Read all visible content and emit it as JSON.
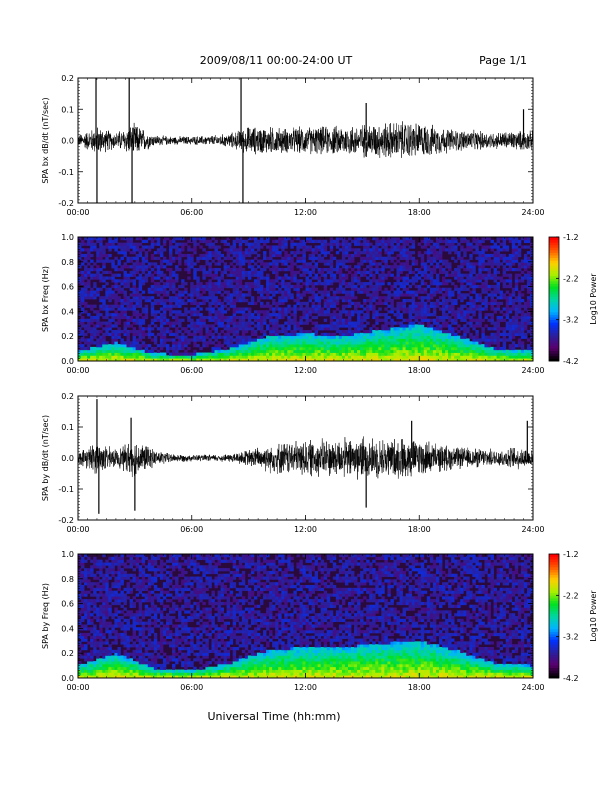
{
  "header": {
    "date_range": "2009/08/11  00:00-24:00 UT",
    "page": "Page 1/1"
  },
  "xaxis": {
    "title": "Universal Time (hh:mm)",
    "tick_labels": [
      "00:00",
      "06:00",
      "12:00",
      "18:00",
      "24:00"
    ],
    "range_hours": [
      0,
      24
    ]
  },
  "colors": {
    "waveform": "#000000",
    "spectrogram_background": "#2a0a3a",
    "colormap": [
      "#000000",
      "#5a006e",
      "#2a1f9c",
      "#0033ff",
      "#00b4ff",
      "#00d6a0",
      "#00e020",
      "#a8f000",
      "#ffd000",
      "#ff5a00",
      "#ff0000"
    ]
  },
  "chart_data": [
    {
      "type": "line",
      "ylabel": "SPA bx dB/dt (nT/sec)",
      "ylim": [
        -0.2,
        0.2
      ],
      "yticks": [
        "-0.2",
        "-0.1",
        "0.0",
        "0.1",
        "0.2"
      ],
      "xlim": [
        0,
        24
      ],
      "envelope": {
        "x_hours": [
          0,
          1,
          2,
          3,
          4,
          5,
          6,
          7,
          8,
          9,
          10,
          11,
          12,
          13,
          14,
          15,
          16,
          17,
          18,
          19,
          20,
          21,
          22,
          23,
          24
        ],
        "amplitude": [
          0.02,
          0.05,
          0.03,
          0.06,
          0.02,
          0.015,
          0.015,
          0.018,
          0.025,
          0.05,
          0.05,
          0.045,
          0.05,
          0.05,
          0.055,
          0.06,
          0.065,
          0.07,
          0.065,
          0.05,
          0.04,
          0.035,
          0.03,
          0.035,
          0.035
        ]
      },
      "spikes": [
        {
          "x_hours": 0.95,
          "y": 0.2
        },
        {
          "x_hours": 1.0,
          "y": -0.2
        },
        {
          "x_hours": 2.7,
          "y": 0.2
        },
        {
          "x_hours": 2.85,
          "y": -0.2
        },
        {
          "x_hours": 8.6,
          "y": 0.2
        },
        {
          "x_hours": 8.7,
          "y": -0.2
        },
        {
          "x_hours": 15.2,
          "y": 0.12
        },
        {
          "x_hours": 23.5,
          "y": 0.1
        }
      ]
    },
    {
      "type": "heatmap",
      "ylabel": "SPA bx Freq (Hz)",
      "ylim": [
        0.0,
        1.0
      ],
      "yticks": [
        "0.0",
        "0.2",
        "0.4",
        "0.6",
        "0.8",
        "1.0"
      ],
      "xlim": [
        0,
        24
      ],
      "colorbar": {
        "label": "Log10 Power",
        "range": [
          -4.2,
          -1.2
        ],
        "tick_labels": [
          "-1.2",
          "-2.2",
          "-3.2",
          "-4.2"
        ]
      },
      "activity": {
        "x_hours": [
          0,
          2,
          4,
          6,
          8,
          10,
          12,
          14,
          16,
          18,
          20,
          22,
          24
        ],
        "low_freq_power_top_hz": [
          0.08,
          0.15,
          0.06,
          0.05,
          0.1,
          0.2,
          0.22,
          0.2,
          0.25,
          0.3,
          0.2,
          0.1,
          0.08
        ]
      }
    },
    {
      "type": "line",
      "ylabel": "SPA by dB/dt (nT/sec)",
      "ylim": [
        -0.2,
        0.2
      ],
      "yticks": [
        "-0.2",
        "-0.1",
        "0.0",
        "0.1",
        "0.2"
      ],
      "xlim": [
        0,
        24
      ],
      "envelope": {
        "x_hours": [
          0,
          1,
          2,
          3,
          4,
          5,
          6,
          7,
          8,
          9,
          10,
          11,
          12,
          13,
          14,
          15,
          16,
          17,
          18,
          19,
          20,
          21,
          22,
          23,
          24
        ],
        "amplitude": [
          0.02,
          0.06,
          0.03,
          0.07,
          0.03,
          0.015,
          0.012,
          0.012,
          0.015,
          0.03,
          0.05,
          0.06,
          0.065,
          0.07,
          0.07,
          0.08,
          0.07,
          0.075,
          0.07,
          0.05,
          0.04,
          0.035,
          0.03,
          0.04,
          0.04
        ]
      },
      "spikes": [
        {
          "x_hours": 1.0,
          "y": 0.19
        },
        {
          "x_hours": 1.1,
          "y": -0.18
        },
        {
          "x_hours": 2.8,
          "y": 0.13
        },
        {
          "x_hours": 3.0,
          "y": -0.17
        },
        {
          "x_hours": 15.2,
          "y": -0.16
        },
        {
          "x_hours": 17.6,
          "y": 0.12
        },
        {
          "x_hours": 23.7,
          "y": 0.12
        }
      ]
    },
    {
      "type": "heatmap",
      "ylabel": "SPA by Freq (Hz)",
      "ylim": [
        0.0,
        1.0
      ],
      "yticks": [
        "0.0",
        "0.2",
        "0.4",
        "0.6",
        "0.8",
        "1.0"
      ],
      "xlim": [
        0,
        24
      ],
      "colorbar": {
        "label": "Log10 Power",
        "range": [
          -4.2,
          -1.2
        ],
        "tick_labels": [
          "-1.2",
          "-2.2",
          "-3.2",
          "-4.2"
        ]
      },
      "activity": {
        "x_hours": [
          0,
          2,
          4,
          6,
          8,
          10,
          12,
          14,
          16,
          18,
          20,
          22,
          24
        ],
        "low_freq_power_top_hz": [
          0.1,
          0.2,
          0.08,
          0.06,
          0.12,
          0.22,
          0.25,
          0.25,
          0.28,
          0.3,
          0.22,
          0.12,
          0.1
        ]
      }
    }
  ]
}
